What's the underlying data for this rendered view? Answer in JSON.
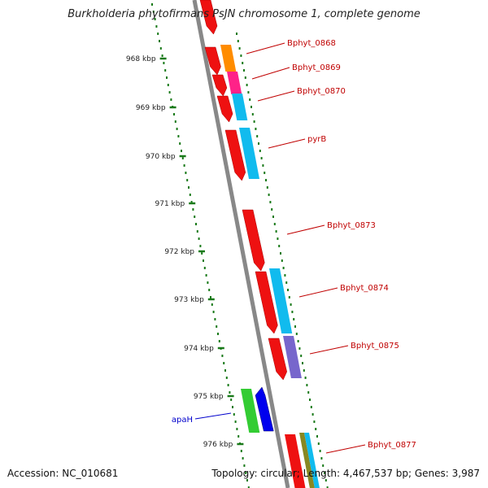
{
  "header": {
    "title": "Burkholderia phytofirmans PsJN chromosome 1, complete genome"
  },
  "footer": {
    "accession": "Accession: NC_010681",
    "summary": "Topology: circular; Length: 4,467,537 bp; Genes: 3,987"
  },
  "ruler": {
    "ticks": [
      "968 kbp",
      "969 kbp",
      "970 kbp",
      "971 kbp",
      "972 kbp",
      "973 kbp",
      "974 kbp",
      "975 kbp",
      "976 kbp"
    ],
    "color": "#1a7a1a"
  },
  "genes": [
    {
      "label": "Bphyt_0868",
      "color": "#c00000"
    },
    {
      "label": "Bphyt_0869",
      "color": "#c00000"
    },
    {
      "label": "Bphyt_0870",
      "color": "#c00000"
    },
    {
      "label": "pyrB",
      "color": "#c00000"
    },
    {
      "label": "Bphyt_0873",
      "color": "#c00000"
    },
    {
      "label": "Bphyt_0874",
      "color": "#c00000"
    },
    {
      "label": "Bphyt_0875",
      "color": "#c00000"
    },
    {
      "label": "apaH",
      "color": "#0000cc"
    },
    {
      "label": "Bphyt_0877",
      "color": "#c00000"
    }
  ],
  "feature_colors": {
    "cds": "#ee1111",
    "orange": "#ff8c00",
    "magenta": "#ff2288",
    "cyan": "#11bbee",
    "purple": "#7766cc",
    "green": "#33cc33",
    "blue": "#0000ee",
    "olive": "#888822",
    "backbone": "#888888"
  }
}
